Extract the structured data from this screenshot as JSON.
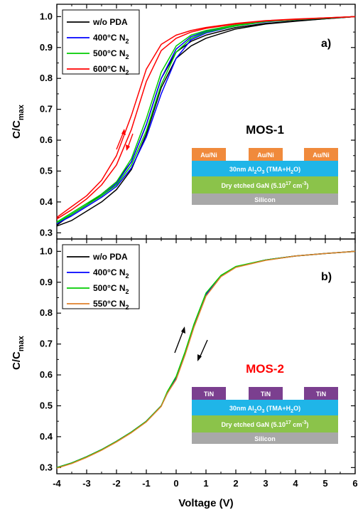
{
  "colors": {
    "series_a": [
      "#000000",
      "#0000ff",
      "#00cc00",
      "#ff0000"
    ],
    "series_b": [
      "#000000",
      "#0000ff",
      "#00cc00",
      "#e0802a"
    ],
    "contact_auni": "#f08a3c",
    "contact_tin": "#7b3f8f",
    "oxide": "#1fb5e8",
    "gan": "#8bc34a",
    "silicon": "#a8a8a8",
    "mos1_title": "#000000",
    "mos2_title": "#ff0000"
  },
  "chart_data": [
    {
      "type": "line",
      "panel": "a)",
      "ylabel_main": "C/C",
      "ylabel_sub": "max",
      "xlim": [
        -4,
        6
      ],
      "ylim": [
        0.28,
        1.04
      ],
      "yticks": [
        0.3,
        0.4,
        0.5,
        0.6,
        0.7,
        0.8,
        0.9,
        1.0
      ],
      "ytick_labels": [
        "0.3",
        "0.4",
        "0.5",
        "0.6",
        "0.7",
        "0.8",
        "0.9",
        "1.0"
      ],
      "legend": {
        "position": "top-left",
        "entries": [
          {
            "main": "w/o PDA",
            "sub": ""
          },
          {
            "main": "400°C N",
            "sub": "2"
          },
          {
            "main": "500°C N",
            "sub": "2"
          },
          {
            "main": "600°C N",
            "sub": "2"
          }
        ]
      },
      "series": [
        {
          "x": [
            -4,
            -3.5,
            -3,
            -2.5,
            -2,
            -1.5,
            -1,
            -0.5,
            0,
            0.5,
            1,
            2,
            3,
            4,
            5,
            6
          ],
          "up": [
            0.325,
            0.36,
            0.39,
            0.425,
            0.465,
            0.53,
            0.65,
            0.8,
            0.885,
            0.92,
            0.94,
            0.965,
            0.978,
            0.986,
            0.993,
            1.0
          ],
          "down": [
            0.322,
            0.34,
            0.37,
            0.4,
            0.44,
            0.505,
            0.62,
            0.77,
            0.865,
            0.905,
            0.93,
            0.96,
            0.976,
            0.985,
            0.993,
            1.0
          ]
        },
        {
          "x": [
            -4,
            -3.5,
            -3,
            -2.5,
            -2,
            -1.5,
            -1,
            -0.5,
            0,
            0.5,
            1,
            2,
            3,
            4,
            5,
            6
          ],
          "up": [
            0.33,
            0.36,
            0.39,
            0.42,
            0.46,
            0.53,
            0.65,
            0.8,
            0.895,
            0.935,
            0.952,
            0.972,
            0.984,
            0.99,
            0.995,
            1.0
          ],
          "down": [
            0.33,
            0.355,
            0.385,
            0.415,
            0.45,
            0.51,
            0.61,
            0.75,
            0.865,
            0.925,
            0.947,
            0.97,
            0.983,
            0.99,
            0.995,
            1.0
          ]
        },
        {
          "x": [
            -4,
            -3.5,
            -3,
            -2.5,
            -2,
            -1.5,
            -1,
            -0.5,
            0,
            0.5,
            1,
            2,
            3,
            4,
            5,
            6
          ],
          "up": [
            0.335,
            0.365,
            0.395,
            0.425,
            0.465,
            0.54,
            0.67,
            0.82,
            0.905,
            0.94,
            0.955,
            0.973,
            0.985,
            0.991,
            0.995,
            1.0
          ],
          "down": [
            0.333,
            0.36,
            0.39,
            0.42,
            0.455,
            0.52,
            0.63,
            0.78,
            0.885,
            0.93,
            0.95,
            0.97,
            0.984,
            0.99,
            0.995,
            1.0
          ]
        },
        {
          "x": [
            -4,
            -3.5,
            -3,
            -2.5,
            -2,
            -1.5,
            -1,
            -0.5,
            0,
            0.5,
            1,
            2,
            3,
            4,
            5,
            6
          ],
          "up": [
            0.35,
            0.385,
            0.42,
            0.47,
            0.55,
            0.68,
            0.83,
            0.91,
            0.94,
            0.955,
            0.965,
            0.978,
            0.987,
            0.992,
            0.996,
            1.0
          ],
          "down": [
            0.345,
            0.375,
            0.41,
            0.455,
            0.52,
            0.635,
            0.79,
            0.89,
            0.93,
            0.95,
            0.962,
            0.976,
            0.986,
            0.991,
            0.996,
            1.0
          ]
        }
      ],
      "structure": {
        "title": "MOS-1",
        "contact_label": "Au/Ni",
        "oxide_main": "30nm Al",
        "oxide_sub": "2",
        "oxide_mid": "O",
        "oxide_sub2": "3",
        "oxide_tail": " (TMA+H",
        "oxide_sub3": "2",
        "oxide_end": "O)",
        "gan_main": "Dry etched GaN (5.10",
        "gan_sup": "17",
        "gan_unit": " cm",
        "gan_sup2": "-3",
        "gan_end": ")",
        "silicon": "Silicon"
      }
    },
    {
      "type": "line",
      "panel": "b)",
      "ylabel_main": "C/C",
      "ylabel_sub": "max",
      "xlabel": "Voltage (V)",
      "xlim": [
        -4,
        6
      ],
      "ylim": [
        0.28,
        1.04
      ],
      "xticks": [
        -4,
        -3,
        -2,
        -1,
        0,
        1,
        2,
        3,
        4,
        5,
        6
      ],
      "xtick_labels": [
        "-4",
        "-3",
        "-2",
        "-1",
        "0",
        "1",
        "2",
        "3",
        "4",
        "5",
        "6"
      ],
      "yticks": [
        0.3,
        0.4,
        0.5,
        0.6,
        0.7,
        0.8,
        0.9,
        1.0
      ],
      "ytick_labels": [
        "0.3",
        "0.4",
        "0.5",
        "0.6",
        "0.7",
        "0.8",
        "0.9",
        "1.0"
      ],
      "legend": {
        "position": "top-left",
        "entries": [
          {
            "main": "w/o PDA",
            "sub": ""
          },
          {
            "main": "400°C N",
            "sub": "2"
          },
          {
            "main": "500°C N",
            "sub": "2"
          },
          {
            "main": "550°C N",
            "sub": "2"
          }
        ]
      },
      "series": [
        {
          "x": [
            -4,
            -3.5,
            -3,
            -2.5,
            -2,
            -1.5,
            -1,
            -0.5,
            -0.3,
            0,
            0.3,
            0.6,
            1,
            1.5,
            2,
            3,
            4,
            5,
            6
          ],
          "up": [
            0.3,
            0.315,
            0.335,
            0.358,
            0.385,
            0.415,
            0.45,
            0.5,
            0.54,
            0.59,
            0.67,
            0.76,
            0.86,
            0.92,
            0.95,
            0.972,
            0.985,
            0.993,
            1.0
          ]
        },
        {
          "x": [
            -4,
            -3.5,
            -3,
            -2.5,
            -2,
            -1.5,
            -1,
            -0.5,
            -0.3,
            0,
            0.3,
            0.6,
            1,
            1.5,
            2,
            3,
            4,
            5,
            6
          ],
          "up": [
            0.3,
            0.315,
            0.335,
            0.358,
            0.385,
            0.415,
            0.45,
            0.5,
            0.54,
            0.59,
            0.67,
            0.76,
            0.86,
            0.92,
            0.95,
            0.972,
            0.985,
            0.993,
            1.0
          ]
        },
        {
          "x": [
            -4,
            -3.5,
            -3,
            -2.5,
            -2,
            -1.5,
            -1,
            -0.5,
            -0.3,
            0,
            0.3,
            0.6,
            1,
            1.5,
            2,
            3,
            4,
            5,
            6
          ],
          "up": [
            0.3,
            0.315,
            0.335,
            0.358,
            0.385,
            0.415,
            0.45,
            0.5,
            0.545,
            0.595,
            0.675,
            0.765,
            0.865,
            0.922,
            0.951,
            0.972,
            0.985,
            0.993,
            1.0
          ]
        },
        {
          "x": [
            -4,
            -3.5,
            -3,
            -2.5,
            -2,
            -1.5,
            -1,
            -0.5,
            -0.3,
            0,
            0.3,
            0.6,
            1,
            1.5,
            2,
            3,
            4,
            5,
            6
          ],
          "up": [
            0.298,
            0.313,
            0.333,
            0.356,
            0.383,
            0.413,
            0.448,
            0.498,
            0.54,
            0.585,
            0.665,
            0.755,
            0.855,
            0.918,
            0.948,
            0.971,
            0.985,
            0.993,
            1.0
          ]
        }
      ],
      "structure": {
        "title": "MOS-2",
        "contact_label": "TiN",
        "oxide_main": "30nm Al",
        "oxide_sub": "2",
        "oxide_mid": "O",
        "oxide_sub2": "3",
        "oxide_tail": " (TMA+H",
        "oxide_sub3": "2",
        "oxide_end": "O)",
        "gan_main": "Dry etched GaN (5.10",
        "gan_sup": "17",
        "gan_unit": " cm",
        "gan_sup2": "-3",
        "gan_end": ")",
        "silicon": "Silicon"
      }
    }
  ]
}
